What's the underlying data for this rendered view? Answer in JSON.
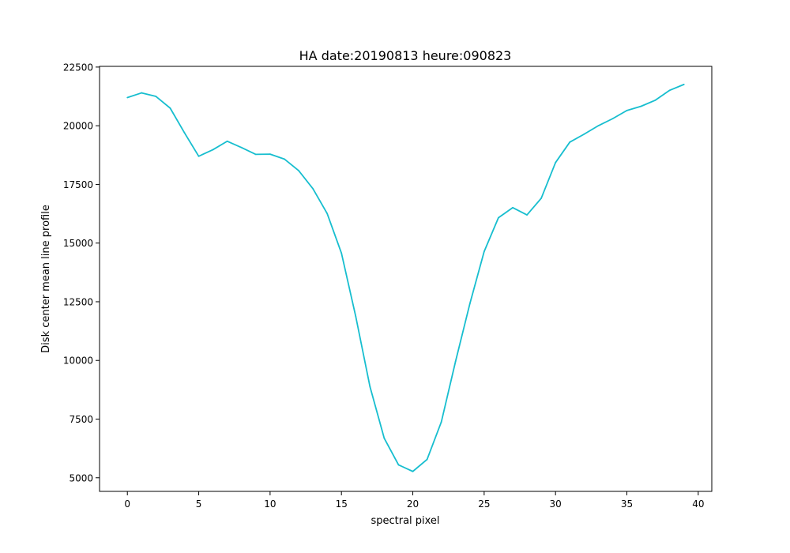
{
  "chart_data": {
    "type": "line",
    "title": "HA date:20190813 heure:090823",
    "xlabel": "spectral pixel",
    "ylabel": "Disk center mean line profile",
    "xlim": [
      -1.95,
      40.95
    ],
    "ylim": [
      4420,
      22530
    ],
    "xticks": [
      0,
      5,
      10,
      15,
      20,
      25,
      30,
      35,
      40
    ],
    "yticks": [
      5000,
      7500,
      10000,
      12500,
      15000,
      17500,
      20000,
      22500
    ],
    "grid": false,
    "legend": "none",
    "line_color": "#17becf",
    "series": [
      {
        "x": [
          0,
          1,
          2,
          3,
          4,
          5,
          6,
          7,
          8,
          9,
          10,
          11,
          12,
          13,
          14,
          15,
          16,
          17,
          18,
          19,
          20,
          21,
          22,
          23,
          24,
          25,
          26,
          27,
          28,
          29,
          30,
          31,
          32,
          33,
          34,
          35,
          36,
          37,
          38,
          39
        ],
        "values": [
          21200,
          21400,
          21250,
          20750,
          19700,
          18700,
          18980,
          19340,
          19070,
          18780,
          18790,
          18580,
          18090,
          17320,
          16260,
          14570,
          11880,
          8880,
          6680,
          5550,
          5270,
          5780,
          7380,
          9970,
          12420,
          14640,
          16080,
          16510,
          16200,
          16910,
          18430,
          19300,
          19640,
          20000,
          20300,
          20650,
          20830,
          21090,
          21510,
          21760
        ]
      }
    ]
  }
}
